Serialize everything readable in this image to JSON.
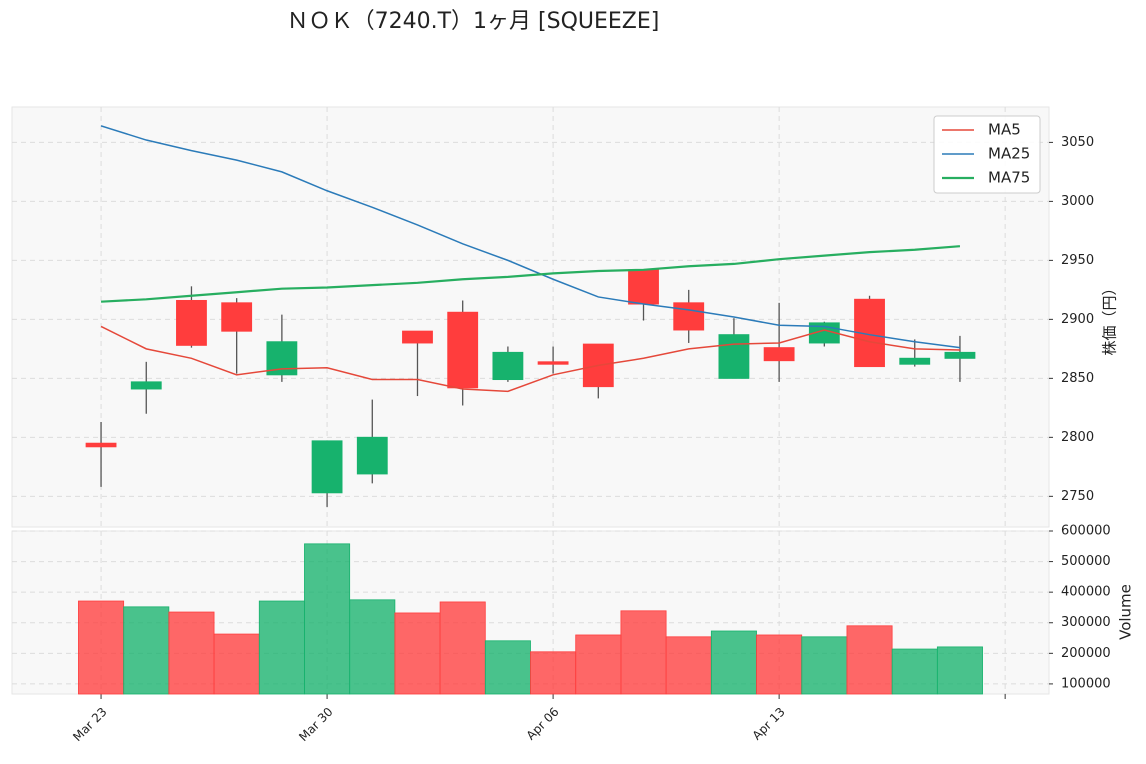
{
  "chart_data": [
    {
      "type": "candlestick",
      "title": "ＮＯＫ（7240.T）1ヶ月 [SQUEEZE]",
      "ylabel": "株価（円）",
      "x": [
        0,
        1,
        2,
        3,
        4,
        5,
        6,
        7,
        8,
        9,
        10,
        11,
        12,
        13,
        14,
        15,
        16,
        17,
        18,
        19
      ],
      "open": [
        2795,
        2841,
        2916,
        2914,
        2853,
        2753,
        2769,
        2890,
        2906,
        2849,
        2864,
        2879,
        2942,
        2914,
        2850,
        2876,
        2880,
        2917,
        2862,
        2867
      ],
      "high": [
        2813,
        2864,
        2928,
        2918,
        2904,
        2797,
        2832,
        2890,
        2916,
        2877,
        2877,
        2879,
        2942,
        2925,
        2901,
        2914,
        2898,
        2920,
        2883,
        2886
      ],
      "low": [
        2758,
        2820,
        2876,
        2854,
        2847,
        2741,
        2761,
        2835,
        2827,
        2847,
        2854,
        2833,
        2899,
        2880,
        2850,
        2847,
        2877,
        2860,
        2860,
        2847
      ],
      "close": [
        2792,
        2847,
        2878,
        2890,
        2881,
        2797,
        2800,
        2880,
        2842,
        2872,
        2862,
        2843,
        2913,
        2891,
        2887,
        2865,
        2897,
        2860,
        2867,
        2872
      ],
      "up_color": "#17b26d",
      "down_color": "#ff3d3d",
      "series": [
        {
          "name": "MA5",
          "color": "#e5483a",
          "values": [
            2894,
            2875,
            2867,
            2853,
            2858,
            2859,
            2849,
            2849,
            2841,
            2839,
            2853,
            2861,
            2867,
            2875,
            2879,
            2880,
            2891,
            2881,
            2875,
            2874
          ]
        },
        {
          "name": "MA25",
          "color": "#2b7bb9",
          "values": [
            3064,
            3052,
            3043,
            3035,
            3025,
            3009,
            2995,
            2980,
            2964,
            2950,
            2934,
            2919,
            2913,
            2908,
            2902,
            2895,
            2894,
            2887,
            2881,
            2876
          ]
        },
        {
          "name": "MA75",
          "color": "#27ae60",
          "values": [
            2915,
            2917,
            2920,
            2923,
            2926,
            2927,
            2929,
            2931,
            2934,
            2936,
            2939,
            2941,
            2942,
            2945,
            2947,
            2951,
            2954,
            2957,
            2959,
            2962
          ]
        }
      ],
      "xlim": [
        -1.97,
        20.97
      ],
      "xticks": [
        {
          "value": 0,
          "label": "Mar 23"
        },
        {
          "value": 5,
          "label": "Mar 30"
        },
        {
          "value": 10,
          "label": "Apr 06"
        },
        {
          "value": 15,
          "label": "Apr 13"
        },
        {
          "value": 20,
          "label": null
        }
      ],
      "ylim": [
        2724,
        3080
      ],
      "yticks": [
        2750,
        2800,
        2850,
        2900,
        2950,
        3000,
        3050
      ],
      "grid": true,
      "legend": "upper right"
    },
    {
      "type": "bar",
      "ylabel": "Volume",
      "values": [
        371000,
        352000,
        335000,
        263000,
        371000,
        558000,
        375000,
        332000,
        368000,
        241000,
        205000,
        260000,
        339000,
        254000,
        273000,
        260000,
        254000,
        290000,
        214000,
        221000
      ],
      "ylim": [
        67000,
        600000
      ],
      "yticks": [
        100000,
        200000,
        300000,
        400000,
        500000,
        600000
      ],
      "grid": true
    }
  ]
}
